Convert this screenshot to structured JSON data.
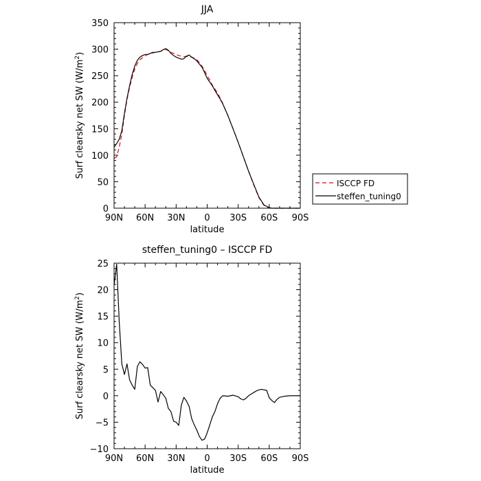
{
  "chart_data": [
    {
      "type": "line",
      "title": "JJA",
      "xlabel": "latitude",
      "ylabel_main": "Surf clearsky net SW (W/m",
      "ylabel_sup": "2",
      "ylabel_tail": ")",
      "xlim": [
        90,
        -90
      ],
      "ylim": [
        0,
        350
      ],
      "xticks": [
        90,
        60,
        30,
        0,
        -30,
        -60,
        -90
      ],
      "xtick_labels": [
        "90N",
        "60N",
        "30N",
        "0",
        "30S",
        "60S",
        "90S"
      ],
      "yticks": [
        0,
        50,
        100,
        150,
        200,
        250,
        300,
        350
      ],
      "ytick_labels": [
        "0",
        "50",
        "100",
        "150",
        "200",
        "250",
        "300",
        "350"
      ],
      "legend_position": "right",
      "series": [
        {
          "name": "ISCCP FD",
          "color": "#e0000f",
          "dash": "dashed",
          "x": [
            90,
            87.5,
            85,
            82.5,
            80,
            77.5,
            75,
            72.5,
            70,
            67.5,
            65,
            62.5,
            60,
            57.5,
            55,
            52.5,
            50,
            47.5,
            45,
            42.5,
            40,
            37.5,
            35,
            32.5,
            30,
            27.5,
            25,
            22.5,
            20,
            17.5,
            15,
            12.5,
            10,
            7.5,
            5,
            2.5,
            0,
            -2.5,
            -5,
            -7.5,
            -10,
            -12.5,
            -15,
            -20,
            -25,
            -30,
            -35,
            -40,
            -45,
            -50,
            -55,
            -60,
            -62.5,
            -65,
            -67.5,
            -70,
            -72.5,
            -75,
            -80,
            -85,
            -90
          ],
          "y": [
            94,
            97,
            115,
            140,
            175,
            205,
            228,
            247,
            262,
            273,
            280,
            284,
            287,
            290,
            292,
            293,
            294,
            295,
            296,
            298,
            300,
            297,
            294,
            292,
            290,
            288,
            287,
            286,
            286,
            286,
            285,
            283,
            280,
            275,
            268,
            260,
            250,
            242,
            232,
            225,
            217,
            208,
            198,
            175,
            150,
            124,
            97,
            70,
            44,
            20,
            5,
            0.5,
            0,
            0,
            0,
            0,
            0,
            0,
            0,
            0,
            0
          ]
        },
        {
          "name": "steffen_tuning0",
          "color": "#000000",
          "dash": "solid",
          "x": [
            90,
            87.5,
            85,
            82.5,
            80,
            77.5,
            75,
            72.5,
            70,
            67.5,
            65,
            62.5,
            60,
            57.5,
            55,
            52.5,
            50,
            47.5,
            45,
            42.5,
            40,
            37.5,
            35,
            32.5,
            30,
            27.5,
            25,
            22.5,
            20,
            17.5,
            15,
            12.5,
            10,
            7.5,
            5,
            2.5,
            0,
            -2.5,
            -5,
            -7.5,
            -10,
            -12.5,
            -15,
            -20,
            -25,
            -30,
            -35,
            -40,
            -45,
            -50,
            -55,
            -60,
            -62.5,
            -65,
            -67.5,
            -70,
            -72.5,
            -75,
            -80,
            -85,
            -90
          ],
          "y": [
            115,
            122,
            130,
            146,
            179,
            207,
            231,
            252,
            268,
            279,
            285,
            288,
            290,
            290,
            292,
            294,
            294,
            295,
            296,
            299,
            301,
            298,
            292,
            288,
            285,
            283,
            281,
            282,
            287,
            289,
            285,
            282,
            278,
            272,
            266,
            256,
            245,
            238,
            231,
            222,
            214,
            206,
            197,
            175,
            150,
            124,
            97,
            70,
            45,
            21,
            6,
            1,
            0,
            0,
            0,
            0,
            0,
            0,
            0,
            0,
            0
          ]
        }
      ]
    },
    {
      "type": "line",
      "title": "steffen_tuning0 – ISCCP FD",
      "xlabel": "latitude",
      "ylabel_main": "Surf clearsky net SW (W/m",
      "ylabel_sup": "2",
      "ylabel_tail": ")",
      "xlim": [
        90,
        -90
      ],
      "ylim": [
        -10,
        25
      ],
      "xticks": [
        90,
        60,
        30,
        0,
        -30,
        -60,
        -90
      ],
      "xtick_labels": [
        "90N",
        "60N",
        "30N",
        "0",
        "30S",
        "60S",
        "90S"
      ],
      "yticks": [
        -10,
        -5,
        0,
        5,
        10,
        15,
        20,
        25
      ],
      "ytick_labels": [
        "−10",
        "−5",
        "0",
        "5",
        "10",
        "15",
        "20",
        "25"
      ],
      "series": [
        {
          "color": "#000000",
          "dash": "solid",
          "x": [
            90,
            87.5,
            85,
            82.5,
            80,
            77.5,
            75,
            72.5,
            70,
            67.5,
            65,
            62.5,
            60,
            57.5,
            55,
            52.5,
            50,
            47.5,
            45,
            42.5,
            40,
            37.5,
            35,
            32.5,
            30,
            27.5,
            25,
            22.5,
            20,
            17.5,
            15,
            12.5,
            10,
            7.5,
            5,
            2.5,
            0,
            -2.5,
            -5,
            -7.5,
            -10,
            -12.5,
            -15,
            -20,
            -25,
            -30,
            -32.5,
            -35,
            -37.5,
            -40,
            -42.5,
            -45,
            -47.5,
            -50,
            -52.5,
            -55,
            -57.5,
            -60,
            -62.5,
            -65,
            -67.5,
            -70,
            -72.5,
            -75,
            -80,
            -85,
            -90
          ],
          "y": [
            20.8,
            24.8,
            14.0,
            6.0,
            4.0,
            6.0,
            3.0,
            2.0,
            1.2,
            5.5,
            6.4,
            5.9,
            5.2,
            5.3,
            2.0,
            1.5,
            1.0,
            -1.2,
            0.8,
            0.2,
            -0.5,
            -2.4,
            -3.0,
            -4.8,
            -5.0,
            -5.6,
            -1.8,
            -0.3,
            -1.0,
            -2.0,
            -4.3,
            -5.5,
            -6.5,
            -7.7,
            -8.4,
            -8.2,
            -7.0,
            -5.5,
            -4.0,
            -3.0,
            -1.5,
            -0.5,
            0.0,
            -0.1,
            0.1,
            -0.2,
            -0.6,
            -0.8,
            -0.5,
            0.0,
            0.3,
            0.6,
            0.9,
            1.1,
            1.2,
            1.1,
            1.0,
            -0.4,
            -0.9,
            -1.3,
            -0.7,
            -0.3,
            -0.2,
            -0.1,
            0.0,
            0.0,
            0.0
          ]
        }
      ]
    }
  ]
}
